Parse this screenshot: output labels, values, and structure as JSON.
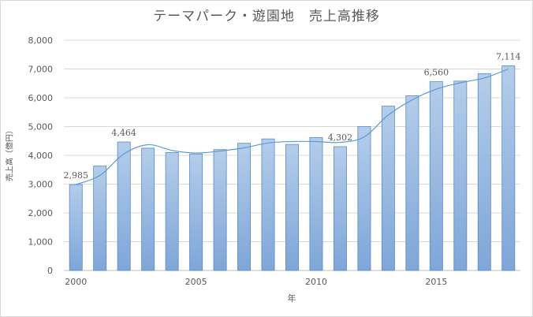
{
  "chart_data": {
    "type": "bar",
    "title": "テーマパーク・遊園地　売上高推移",
    "xlabel": "年",
    "ylabel": "売上高（億円）",
    "ylim": [
      0,
      8000
    ],
    "y_ticks": [
      "0",
      "1,000",
      "2,000",
      "3,000",
      "4,000",
      "5,000",
      "6,000",
      "7,000",
      "8,000"
    ],
    "x_tick_labels": [
      {
        "label": "2000",
        "year": 2000
      },
      {
        "label": "2005",
        "year": 2005
      },
      {
        "label": "2010",
        "year": 2010
      },
      {
        "label": "2015",
        "year": 2015
      }
    ],
    "grid": true,
    "legend": "none",
    "categories": [
      2000,
      2001,
      2002,
      2003,
      2004,
      2005,
      2006,
      2007,
      2008,
      2009,
      2010,
      2011,
      2012,
      2013,
      2014,
      2015,
      2016,
      2017,
      2018
    ],
    "series": [
      {
        "type": "bar",
        "values": [
          2985,
          3630,
          4464,
          4250,
          4100,
          4050,
          4200,
          4420,
          4570,
          4380,
          4620,
          4302,
          5000,
          5710,
          6070,
          6560,
          6580,
          6840,
          7114
        ]
      },
      {
        "type": "line",
        "values": [
          2985,
          3300,
          4050,
          4370,
          4170,
          4080,
          4150,
          4260,
          4430,
          4480,
          4480,
          4450,
          4640,
          5400,
          5930,
          6300,
          6520,
          6690,
          7000
        ]
      }
    ],
    "data_labels": [
      {
        "category": 2000,
        "text": "2,985"
      },
      {
        "category": 2002,
        "text": "4,464"
      },
      {
        "category": 2011,
        "text": "4,302"
      },
      {
        "category": 2015,
        "text": "6,560"
      },
      {
        "category": 2018,
        "text": "7,114"
      }
    ],
    "colors": {
      "bar_top": "#b4cdea",
      "bar_bottom": "#7ea6d8",
      "bar_edge": "#5b8ac6",
      "line": "#5b9bd5",
      "grid": "#d9d9d9",
      "text": "#595959"
    }
  }
}
